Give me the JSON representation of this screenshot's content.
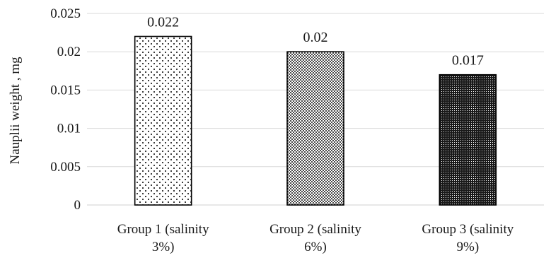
{
  "chart_data": {
    "type": "bar",
    "title": "",
    "xlabel": "",
    "ylabel": "Nauplii weight , mg",
    "ylim": [
      0,
      0.025
    ],
    "yticks": [
      "0",
      "0.005",
      "0.01",
      "0.015",
      "0.02",
      "0.025"
    ],
    "grid": true,
    "legend": "none",
    "categories": [
      [
        "Group 1 (salinity",
        "3%)"
      ],
      [
        "Group 2 (salinity",
        "6%)"
      ],
      [
        "Group 3 (salinity",
        "9%)"
      ]
    ],
    "values": [
      0.022,
      0.02,
      0.017
    ],
    "data_labels": [
      "0.022",
      "0.02",
      "0.017"
    ],
    "bar_patterns": [
      "sparse-dots",
      "medium-dots",
      "dense-dots"
    ],
    "colors": {
      "bar_outline": "#000000",
      "bar_fill": "#ffffff",
      "grid": "#d9d9d9",
      "text": "#1a1a1a"
    }
  }
}
